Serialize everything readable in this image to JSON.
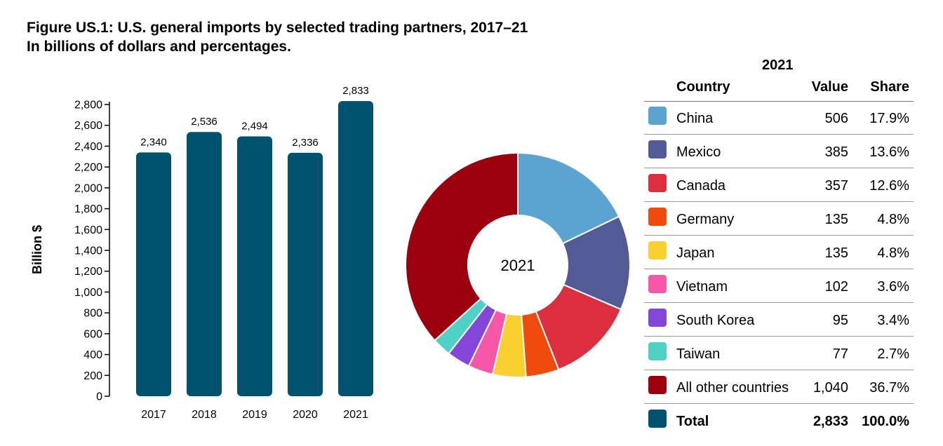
{
  "title_line1": "Figure US.1: U.S. general imports by selected trading partners, 2017–21",
  "title_line2": "In billions of dollars and percentages.",
  "chart_data": [
    {
      "type": "bar",
      "categories": [
        "2017",
        "2018",
        "2019",
        "2020",
        "2021"
      ],
      "values": [
        2340,
        2536,
        2494,
        2336,
        2833
      ],
      "value_labels": [
        "2,340",
        "2,536",
        "2,494",
        "2,336",
        "2,833"
      ],
      "ylabel": "Billion $",
      "ylim": [
        0,
        2800
      ],
      "yticks": [
        0,
        200,
        400,
        600,
        800,
        1000,
        1200,
        1400,
        1600,
        1800,
        2000,
        2200,
        2400,
        2600,
        2800
      ],
      "ytick_labels": [
        "0",
        "200",
        "400",
        "600",
        "800",
        "1,000",
        "1,200",
        "1,400",
        "1,600",
        "1,800",
        "2,000",
        "2,200",
        "2,400",
        "2,600",
        "2,800"
      ],
      "color": "#00536f",
      "grid": false
    },
    {
      "type": "pie",
      "center_label": "2021",
      "categories": [
        "China",
        "Mexico",
        "Canada",
        "Germany",
        "Japan",
        "Vietnam",
        "South Korea",
        "Taiwan",
        "All other countries"
      ],
      "values": [
        506,
        385,
        357,
        135,
        135,
        102,
        95,
        77,
        1040
      ],
      "colors": [
        "#5ba4d2",
        "#535b96",
        "#dc2e3f",
        "#ee4b0c",
        "#f9d02d",
        "#f757a8",
        "#8446d8",
        "#4fd1c5",
        "#9c000f"
      ]
    }
  ],
  "legend": {
    "year": "2021",
    "header": {
      "country": "Country",
      "value": "Value",
      "share": "Share"
    },
    "rows": [
      {
        "country": "China",
        "value": "506",
        "share": "17.9%",
        "color": "#5ba4d2"
      },
      {
        "country": "Mexico",
        "value": "385",
        "share": "13.6%",
        "color": "#535b96"
      },
      {
        "country": "Canada",
        "value": "357",
        "share": "12.6%",
        "color": "#dc2e3f"
      },
      {
        "country": "Germany",
        "value": "135",
        "share": "4.8%",
        "color": "#ee4b0c"
      },
      {
        "country": "Japan",
        "value": "135",
        "share": "4.8%",
        "color": "#f9d02d"
      },
      {
        "country": "Vietnam",
        "value": "102",
        "share": "3.6%",
        "color": "#f757a8"
      },
      {
        "country": "South Korea",
        "value": "95",
        "share": "3.4%",
        "color": "#8446d8"
      },
      {
        "country": "Taiwan",
        "value": "77",
        "share": "2.7%",
        "color": "#4fd1c5"
      },
      {
        "country": "All other countries",
        "value": "1,040",
        "share": "36.7%",
        "color": "#9c000f"
      }
    ],
    "total": {
      "country": "Total",
      "value": "2,833",
      "share": "100.0%",
      "color": "#00536f"
    }
  }
}
